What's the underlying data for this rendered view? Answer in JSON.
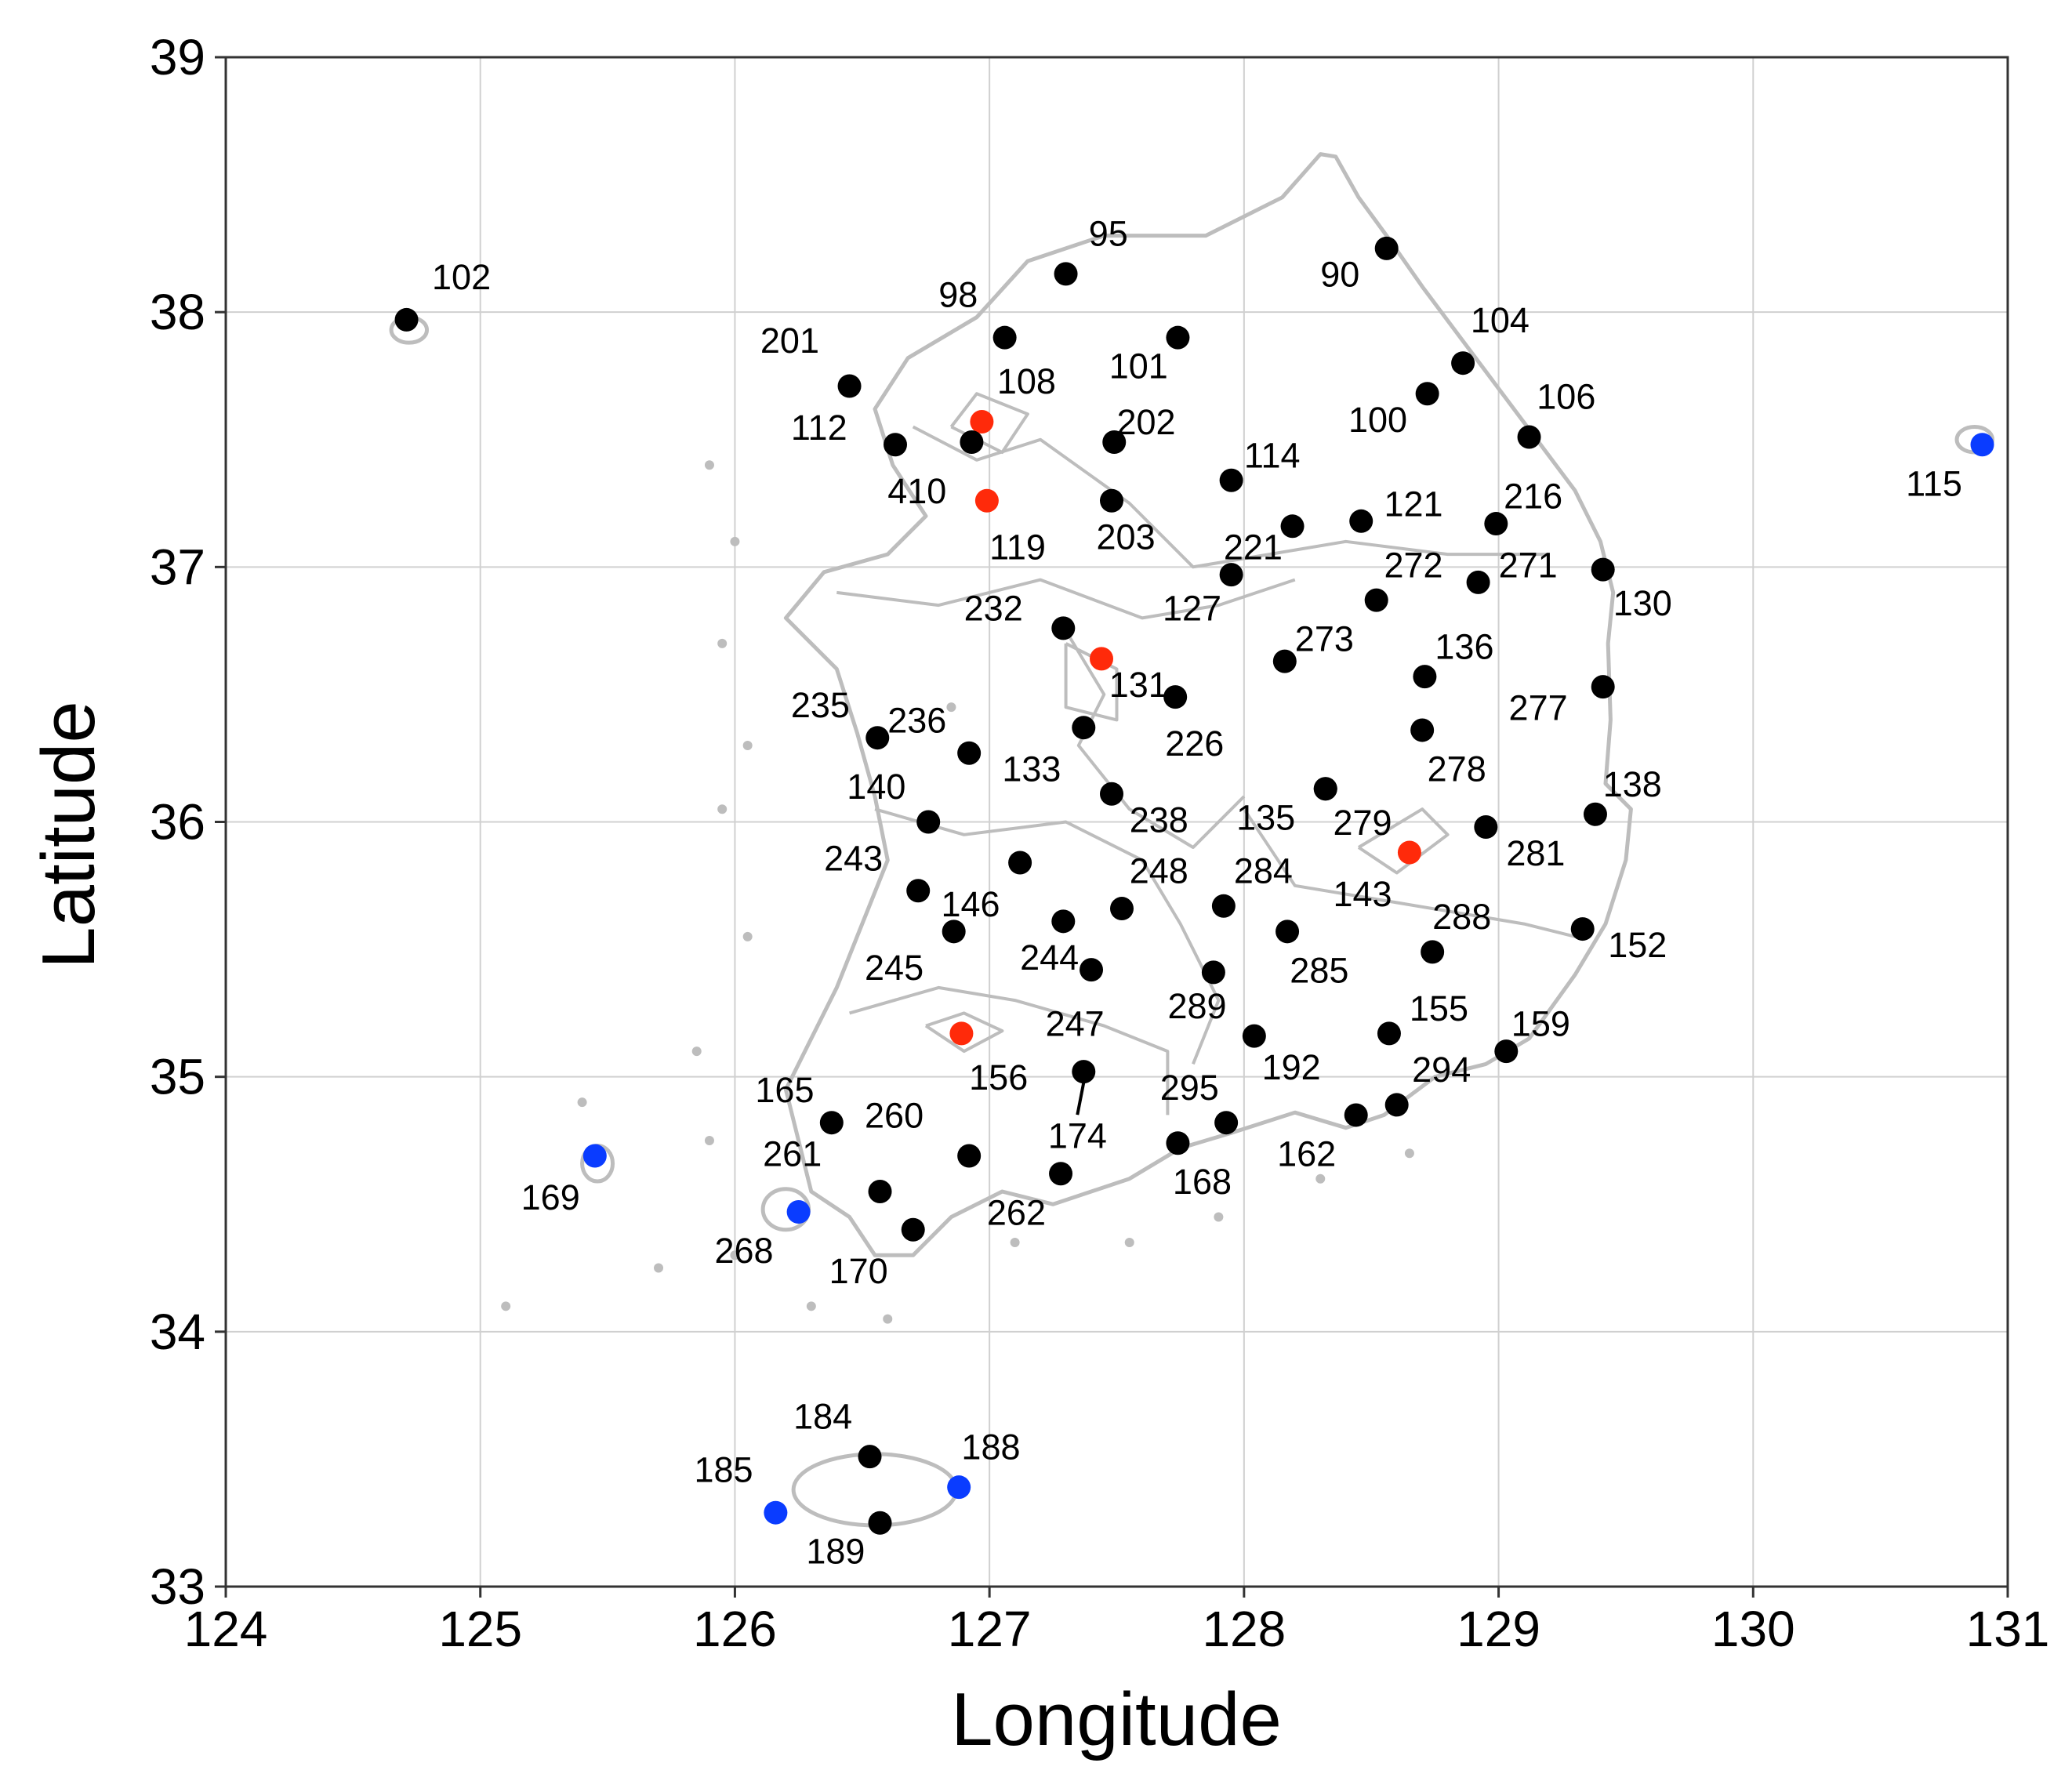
{
  "axes": {
    "xlabel": "Longitude",
    "ylabel": "Latitude",
    "xlim": [
      124,
      131
    ],
    "ylim": [
      33,
      39
    ],
    "xticks": [
      "124",
      "125",
      "126",
      "127",
      "128",
      "129",
      "130",
      "131"
    ],
    "yticks": [
      "33",
      "34",
      "35",
      "36",
      "37",
      "38",
      "39"
    ],
    "grid": true
  },
  "colors": {
    "normal": "#000000",
    "urban": "#ff2a0a",
    "island": "#0a3cff",
    "coast": "#bdbdbd",
    "grid": "#d0d0d0"
  },
  "chart_data": {
    "type": "scatter",
    "stations": [
      {
        "id": "90",
        "lon": 128.56,
        "lat": 38.25,
        "category": "normal"
      },
      {
        "id": "95",
        "lon": 127.3,
        "lat": 38.15,
        "category": "normal"
      },
      {
        "id": "98",
        "lon": 127.06,
        "lat": 37.9,
        "category": "normal"
      },
      {
        "id": "100",
        "lon": 128.72,
        "lat": 37.68,
        "category": "normal"
      },
      {
        "id": "101",
        "lon": 127.74,
        "lat": 37.9,
        "category": "normal"
      },
      {
        "id": "102",
        "lon": 124.71,
        "lat": 37.97,
        "category": "normal"
      },
      {
        "id": "104",
        "lon": 128.86,
        "lat": 37.8,
        "category": "normal"
      },
      {
        "id": "106",
        "lon": 129.12,
        "lat": 37.51,
        "category": "normal"
      },
      {
        "id": "108",
        "lon": 126.97,
        "lat": 37.57,
        "category": "urban"
      },
      {
        "id": "112",
        "lon": 126.63,
        "lat": 37.48,
        "category": "normal"
      },
      {
        "id": "114",
        "lon": 127.95,
        "lat": 37.34,
        "category": "normal"
      },
      {
        "id": "115",
        "lon": 130.9,
        "lat": 37.48,
        "category": "island"
      },
      {
        "id": "119",
        "lon": 126.99,
        "lat": 37.26,
        "category": "urban"
      },
      {
        "id": "121",
        "lon": 128.46,
        "lat": 37.18,
        "category": "normal"
      },
      {
        "id": "127",
        "lon": 127.95,
        "lat": 36.97,
        "category": "normal"
      },
      {
        "id": "130",
        "lon": 129.41,
        "lat": 36.99,
        "category": "normal"
      },
      {
        "id": "131",
        "lon": 127.44,
        "lat": 36.64,
        "category": "urban"
      },
      {
        "id": "133",
        "lon": 127.37,
        "lat": 36.37,
        "category": "normal"
      },
      {
        "id": "135",
        "lon": 128.32,
        "lat": 36.13,
        "category": "normal"
      },
      {
        "id": "136",
        "lon": 128.71,
        "lat": 36.57,
        "category": "normal"
      },
      {
        "id": "138",
        "lon": 129.38,
        "lat": 36.03,
        "category": "normal"
      },
      {
        "id": "140",
        "lon": 126.76,
        "lat": 36.0,
        "category": "normal"
      },
      {
        "id": "143",
        "lon": 128.65,
        "lat": 35.88,
        "category": "urban"
      },
      {
        "id": "146",
        "lon": 127.12,
        "lat": 35.84,
        "category": "normal"
      },
      {
        "id": "152",
        "lon": 129.33,
        "lat": 35.58,
        "category": "normal"
      },
      {
        "id": "155",
        "lon": 128.57,
        "lat": 35.17,
        "category": "normal"
      },
      {
        "id": "156",
        "lon": 126.89,
        "lat": 35.17,
        "category": "urban"
      },
      {
        "id": "159",
        "lon": 129.03,
        "lat": 35.1,
        "category": "normal"
      },
      {
        "id": "162",
        "lon": 128.44,
        "lat": 34.85,
        "category": "normal"
      },
      {
        "id": "165",
        "lon": 126.38,
        "lat": 34.82,
        "category": "normal"
      },
      {
        "id": "168",
        "lon": 127.74,
        "lat": 34.74,
        "category": "normal"
      },
      {
        "id": "169",
        "lon": 125.45,
        "lat": 34.69,
        "category": "island"
      },
      {
        "id": "170",
        "lon": 126.7,
        "lat": 34.4,
        "category": "normal"
      },
      {
        "id": "174",
        "lon": 127.37,
        "lat": 35.02,
        "category": "normal"
      },
      {
        "id": "184",
        "lon": 126.53,
        "lat": 33.51,
        "category": "normal"
      },
      {
        "id": "185",
        "lon": 126.16,
        "lat": 33.29,
        "category": "island"
      },
      {
        "id": "188",
        "lon": 126.88,
        "lat": 33.39,
        "category": "island"
      },
      {
        "id": "189",
        "lon": 126.57,
        "lat": 33.25,
        "category": "normal"
      },
      {
        "id": "192",
        "lon": 128.04,
        "lat": 35.16,
        "category": "normal"
      },
      {
        "id": "201",
        "lon": 126.45,
        "lat": 37.71,
        "category": "normal"
      },
      {
        "id": "202",
        "lon": 127.49,
        "lat": 37.49,
        "category": "normal"
      },
      {
        "id": "203",
        "lon": 127.48,
        "lat": 37.26,
        "category": "normal"
      },
      {
        "id": "216",
        "lon": 128.99,
        "lat": 37.17,
        "category": "normal"
      },
      {
        "id": "221",
        "lon": 128.19,
        "lat": 37.16,
        "category": "normal"
      },
      {
        "id": "226",
        "lon": 127.73,
        "lat": 36.49,
        "category": "normal"
      },
      {
        "id": "232",
        "lon": 127.29,
        "lat": 36.76,
        "category": "normal"
      },
      {
        "id": "235",
        "lon": 126.56,
        "lat": 36.33,
        "category": "normal"
      },
      {
        "id": "236",
        "lon": 126.92,
        "lat": 36.27,
        "category": "normal"
      },
      {
        "id": "238",
        "lon": 127.48,
        "lat": 36.11,
        "category": "normal"
      },
      {
        "id": "243",
        "lon": 126.72,
        "lat": 35.73,
        "category": "normal"
      },
      {
        "id": "244",
        "lon": 127.29,
        "lat": 35.61,
        "category": "normal"
      },
      {
        "id": "245",
        "lon": 126.86,
        "lat": 35.57,
        "category": "normal"
      },
      {
        "id": "247",
        "lon": 127.4,
        "lat": 35.42,
        "category": "normal"
      },
      {
        "id": "248",
        "lon": 127.52,
        "lat": 35.66,
        "category": "normal"
      },
      {
        "id": "260",
        "lon": 126.92,
        "lat": 34.69,
        "category": "normal"
      },
      {
        "id": "261",
        "lon": 126.57,
        "lat": 34.55,
        "category": "normal"
      },
      {
        "id": "262",
        "lon": 127.28,
        "lat": 34.62,
        "category": "normal"
      },
      {
        "id": "268",
        "lon": 126.25,
        "lat": 34.47,
        "category": "island"
      },
      {
        "id": "271",
        "lon": 128.92,
        "lat": 36.94,
        "category": "normal"
      },
      {
        "id": "272",
        "lon": 128.52,
        "lat": 36.87,
        "category": "normal"
      },
      {
        "id": "273",
        "lon": 128.16,
        "lat": 36.63,
        "category": "normal"
      },
      {
        "id": "277",
        "lon": 129.41,
        "lat": 36.53,
        "category": "normal"
      },
      {
        "id": "278",
        "lon": 128.7,
        "lat": 36.36,
        "category": "normal"
      },
      {
        "id": "279",
        "lon": 128.32,
        "lat": 36.13,
        "category": "normal"
      },
      {
        "id": "281",
        "lon": 128.95,
        "lat": 35.98,
        "category": "normal"
      },
      {
        "id": "284",
        "lon": 127.92,
        "lat": 35.67,
        "category": "normal"
      },
      {
        "id": "285",
        "lon": 128.17,
        "lat": 35.57,
        "category": "normal"
      },
      {
        "id": "288",
        "lon": 128.74,
        "lat": 35.49,
        "category": "normal"
      },
      {
        "id": "289",
        "lon": 127.88,
        "lat": 35.41,
        "category": "normal"
      },
      {
        "id": "294",
        "lon": 128.6,
        "lat": 34.89,
        "category": "normal"
      },
      {
        "id": "295",
        "lon": 127.93,
        "lat": 34.82,
        "category": "normal"
      },
      {
        "id": "410",
        "lon": 126.93,
        "lat": 37.49,
        "category": "normal"
      }
    ]
  },
  "labels": [
    {
      "text": "90",
      "lon": 128.3,
      "lat": 38.1
    },
    {
      "text": "95",
      "lon": 127.39,
      "lat": 38.26
    },
    {
      "text": "98",
      "lon": 126.8,
      "lat": 38.02
    },
    {
      "text": "100",
      "lon": 128.41,
      "lat": 37.53
    },
    {
      "text": "101",
      "lon": 127.47,
      "lat": 37.74
    },
    {
      "text": "102",
      "lon": 124.81,
      "lat": 38.09
    },
    {
      "text": "104",
      "lon": 128.89,
      "lat": 37.92
    },
    {
      "text": "106",
      "lon": 129.15,
      "lat": 37.62
    },
    {
      "text": "108",
      "lon": 127.03,
      "lat": 37.68
    },
    {
      "text": "112",
      "lon": 126.22,
      "lat": 37.5
    },
    {
      "text": "114",
      "lon": 128.0,
      "lat": 37.39
    },
    {
      "text": "115",
      "lon": 130.6,
      "lat": 37.28
    },
    {
      "text": "119",
      "lon": 127.0,
      "lat": 37.03
    },
    {
      "text": "121",
      "lon": 128.55,
      "lat": 37.2
    },
    {
      "text": "127",
      "lon": 127.68,
      "lat": 36.79
    },
    {
      "text": "130",
      "lon": 129.45,
      "lat": 36.81
    },
    {
      "text": "131",
      "lon": 127.47,
      "lat": 36.49
    },
    {
      "text": "133",
      "lon": 127.05,
      "lat": 36.16
    },
    {
      "text": "135",
      "lon": 127.97,
      "lat": 35.97
    },
    {
      "text": "136",
      "lon": 128.75,
      "lat": 36.64
    },
    {
      "text": "138",
      "lon": 129.41,
      "lat": 36.1
    },
    {
      "text": "140",
      "lon": 126.44,
      "lat": 36.09
    },
    {
      "text": "143",
      "lon": 128.35,
      "lat": 35.67
    },
    {
      "text": "146",
      "lon": 126.81,
      "lat": 35.63
    },
    {
      "text": "152",
      "lon": 129.43,
      "lat": 35.47
    },
    {
      "text": "155",
      "lon": 128.65,
      "lat": 35.22
    },
    {
      "text": "156",
      "lon": 126.92,
      "lat": 34.95
    },
    {
      "text": "159",
      "lon": 129.05,
      "lat": 35.16
    },
    {
      "text": "162",
      "lon": 128.13,
      "lat": 34.65
    },
    {
      "text": "165",
      "lon": 126.08,
      "lat": 34.9
    },
    {
      "text": "168",
      "lon": 127.72,
      "lat": 34.54
    },
    {
      "text": "169",
      "lon": 125.16,
      "lat": 34.48
    },
    {
      "text": "170",
      "lon": 126.37,
      "lat": 34.19
    },
    {
      "text": "174",
      "lon": 127.23,
      "lat": 34.72
    },
    {
      "text": "184",
      "lon": 126.23,
      "lat": 33.62
    },
    {
      "text": "185",
      "lon": 125.84,
      "lat": 33.41
    },
    {
      "text": "188",
      "lon": 126.89,
      "lat": 33.5
    },
    {
      "text": "189",
      "lon": 126.28,
      "lat": 33.09
    },
    {
      "text": "192",
      "lon": 128.07,
      "lat": 34.99
    },
    {
      "text": "201",
      "lon": 126.1,
      "lat": 37.84
    },
    {
      "text": "202",
      "lon": 127.5,
      "lat": 37.52
    },
    {
      "text": "203",
      "lon": 127.42,
      "lat": 37.07
    },
    {
      "text": "216",
      "lon": 129.02,
      "lat": 37.23
    },
    {
      "text": "221",
      "lon": 127.92,
      "lat": 37.03
    },
    {
      "text": "226",
      "lon": 127.69,
      "lat": 36.26
    },
    {
      "text": "232",
      "lon": 126.9,
      "lat": 36.79
    },
    {
      "text": "235",
      "lon": 126.22,
      "lat": 36.41
    },
    {
      "text": "236",
      "lon": 126.6,
      "lat": 36.35
    },
    {
      "text": "238",
      "lon": 127.55,
      "lat": 35.96
    },
    {
      "text": "243",
      "lon": 126.35,
      "lat": 35.81
    },
    {
      "text": "244",
      "lon": 127.12,
      "lat": 35.42
    },
    {
      "text": "245",
      "lon": 126.51,
      "lat": 35.38
    },
    {
      "text": "247",
      "lon": 127.22,
      "lat": 35.16
    },
    {
      "text": "248",
      "lon": 127.55,
      "lat": 35.76
    },
    {
      "text": "260",
      "lon": 126.51,
      "lat": 34.8
    },
    {
      "text": "261",
      "lon": 126.11,
      "lat": 34.65
    },
    {
      "text": "262",
      "lon": 126.99,
      "lat": 34.42
    },
    {
      "text": "268",
      "lon": 125.92,
      "lat": 34.27
    },
    {
      "text": "271",
      "lon": 129.0,
      "lat": 36.96
    },
    {
      "text": "272",
      "lon": 128.55,
      "lat": 36.96
    },
    {
      "text": "273",
      "lon": 128.2,
      "lat": 36.67
    },
    {
      "text": "277",
      "lon": 129.04,
      "lat": 36.4
    },
    {
      "text": "278",
      "lon": 128.72,
      "lat": 36.16
    },
    {
      "text": "279",
      "lon": 128.35,
      "lat": 35.95
    },
    {
      "text": "281",
      "lon": 129.03,
      "lat": 35.83
    },
    {
      "text": "284",
      "lon": 127.96,
      "lat": 35.76
    },
    {
      "text": "285",
      "lon": 128.18,
      "lat": 35.37
    },
    {
      "text": "288",
      "lon": 128.74,
      "lat": 35.58
    },
    {
      "text": "289",
      "lon": 127.7,
      "lat": 35.23
    },
    {
      "text": "294",
      "lon": 128.66,
      "lat": 34.98
    },
    {
      "text": "295",
      "lon": 127.67,
      "lat": 34.91
    },
    {
      "text": "410",
      "lon": 126.6,
      "lat": 37.25
    }
  ]
}
